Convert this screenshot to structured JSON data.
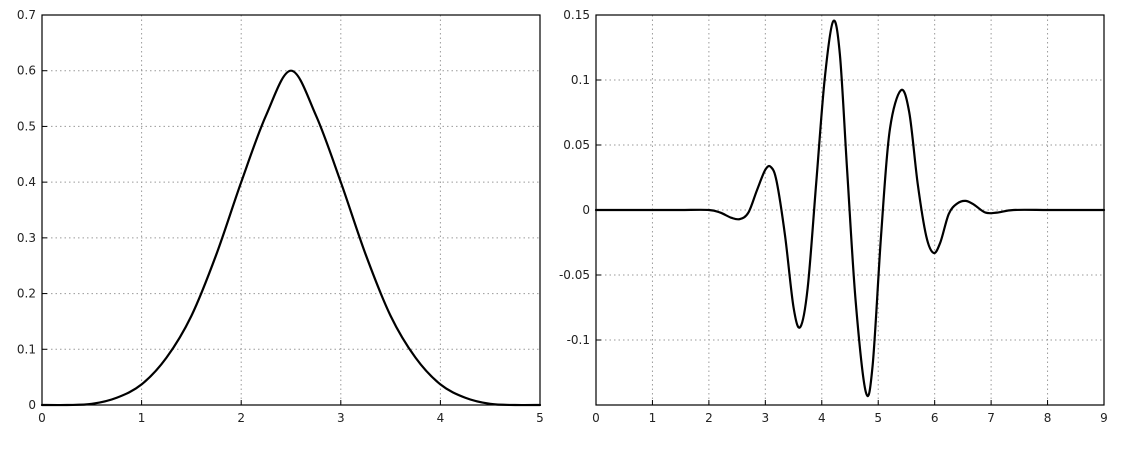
{
  "chart_data": [
    {
      "type": "line",
      "title": "",
      "xlabel": "",
      "ylabel": "",
      "xlim": [
        0,
        5
      ],
      "ylim": [
        0,
        0.7
      ],
      "grid": true,
      "x_ticks": [
        "0",
        "1",
        "2",
        "3",
        "4",
        "5"
      ],
      "y_ticks": [
        "0",
        "0.1",
        "0.2",
        "0.3",
        "0.4",
        "0.5",
        "0.6",
        "0.7"
      ],
      "x_tick_values": [
        0,
        1,
        2,
        3,
        4,
        5
      ],
      "y_tick_values": [
        0,
        0.1,
        0.2,
        0.3,
        0.4,
        0.5,
        0.6,
        0.7
      ],
      "line_color": "#000000",
      "series": [
        {
          "x": [
            0,
            0.25,
            0.5,
            0.75,
            1.0,
            1.25,
            1.5,
            1.75,
            2.0,
            2.25,
            2.5,
            2.75,
            3.0,
            3.25,
            3.5,
            3.75,
            4.0,
            4.25,
            4.5,
            4.75,
            5.0
          ],
          "values": [
            0.0,
            0.0,
            0.002,
            0.013,
            0.037,
            0.085,
            0.16,
            0.27,
            0.4,
            0.52,
            0.6,
            0.52,
            0.4,
            0.27,
            0.16,
            0.085,
            0.037,
            0.013,
            0.002,
            0.0,
            0.0
          ]
        }
      ]
    },
    {
      "type": "line",
      "title": "",
      "xlabel": "",
      "ylabel": "",
      "xlim": [
        0,
        9
      ],
      "ylim": [
        -0.15,
        0.15
      ],
      "grid": true,
      "x_ticks": [
        "0",
        "1",
        "2",
        "3",
        "4",
        "5",
        "6",
        "7",
        "8",
        "9"
      ],
      "y_ticks": [
        "-0.1",
        "-0.05",
        "0",
        "0.05",
        "0.1",
        "0.15"
      ],
      "x_tick_values": [
        0,
        1,
        2,
        3,
        4,
        5,
        6,
        7,
        8,
        9
      ],
      "y_tick_values": [
        -0.1,
        -0.05,
        0,
        0.05,
        0.1,
        0.15
      ],
      "line_color": "#000000",
      "series": [
        {
          "x": [
            0,
            0.5,
            1.0,
            1.5,
            2.0,
            2.2,
            2.4,
            2.55,
            2.7,
            2.85,
            3.0,
            3.1,
            3.2,
            3.35,
            3.5,
            3.62,
            3.75,
            3.9,
            4.05,
            4.2,
            4.32,
            4.45,
            4.6,
            4.78,
            4.9,
            5.05,
            5.2,
            5.4,
            5.55,
            5.7,
            5.85,
            5.98,
            6.1,
            6.25,
            6.4,
            6.55,
            6.7,
            6.9,
            7.1,
            7.4,
            8.0,
            8.5,
            9.0
          ],
          "values": [
            0.0,
            0.0,
            0.0,
            0.0,
            0.0,
            -0.002,
            -0.006,
            -0.007,
            -0.002,
            0.015,
            0.031,
            0.033,
            0.022,
            -0.02,
            -0.075,
            -0.09,
            -0.06,
            0.02,
            0.1,
            0.145,
            0.12,
            0.03,
            -0.07,
            -0.14,
            -0.12,
            -0.02,
            0.06,
            0.092,
            0.075,
            0.02,
            -0.02,
            -0.033,
            -0.025,
            -0.003,
            0.005,
            0.007,
            0.004,
            -0.002,
            -0.002,
            0.0,
            0.0,
            0.0,
            0.0
          ]
        }
      ]
    }
  ]
}
